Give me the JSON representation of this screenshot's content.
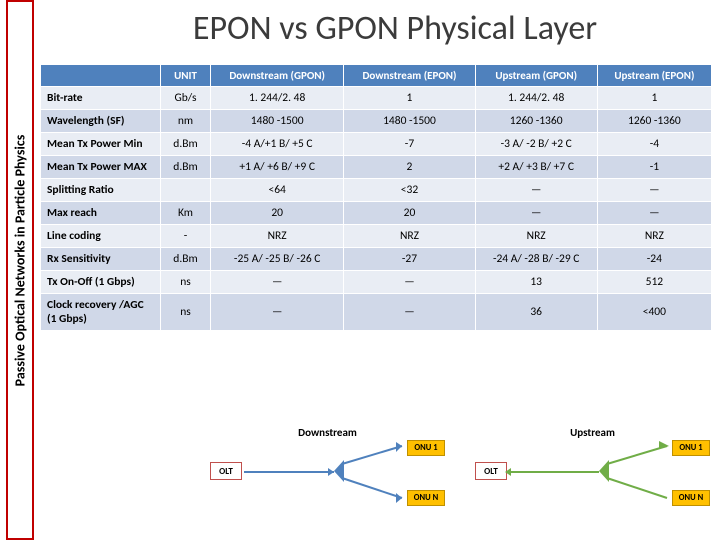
{
  "title": "EPON vs GPON Physical Layer",
  "sidebar": "Passive Optical Networks in Particle Physics",
  "headers": {
    "unit": "UNIT",
    "ds_gpon": "Downstream (GPON)",
    "ds_epon": "Downstream (EPON)",
    "us_gpon": "Upstream (GPON)",
    "us_epon": "Upstream (EPON)"
  },
  "rows": [
    {
      "label": "Bit-rate",
      "unit": "Gb/s",
      "dsg": "1. 244/2. 48",
      "dse": "1",
      "usg": "1. 244/2. 48",
      "use": "1"
    },
    {
      "label": "Wavelength (SF)",
      "unit": "nm",
      "dsg": "1480 -1500",
      "dse": "1480 -1500",
      "usg": "1260 -1360",
      "use": "1260 -1360"
    },
    {
      "label": "Mean Tx Power Min",
      "unit": "d.Bm",
      "dsg": "-4  A/+1 B/ +5 C",
      "dse": "-7",
      "usg": "-3 A/ -2 B/ +2 C",
      "use": "-4"
    },
    {
      "label": "Mean Tx Power MAX",
      "unit": "d.Bm",
      "dsg": "+1 A/ +6 B/ +9 C",
      "dse": "2",
      "usg": "+2 A/ +3 B/ +7 C",
      "use": "-1"
    },
    {
      "label": "Splitting Ratio",
      "unit": "",
      "dsg": "<64",
      "dse": "<32",
      "usg": "—",
      "use": "—"
    },
    {
      "label": "Max reach",
      "unit": "Km",
      "dsg": "20",
      "dse": "20",
      "usg": "—",
      "use": "—"
    },
    {
      "label": "Line coding",
      "unit": "-",
      "dsg": "NRZ",
      "dse": "NRZ",
      "usg": "NRZ",
      "use": "NRZ"
    },
    {
      "label": "Rx Sensitivity",
      "unit": "d.Bm",
      "dsg": "-25 A/ -25 B/ -26 C",
      "dse": "-27",
      "usg": "-24 A/ -28 B/ -29 C",
      "use": "-24"
    },
    {
      "label": "Tx On-Off  (1 Gbps)",
      "unit": "ns",
      "dsg": "—",
      "dse": "—",
      "usg": "13",
      "use": "512"
    },
    {
      "label": "Clock recovery /AGC (1 Gbps)",
      "unit": "ns",
      "dsg": "—",
      "dse": "—",
      "usg": "36",
      "use": "<400"
    }
  ],
  "diagram": {
    "downstream": "Downstream",
    "upstream": "Upstream",
    "olt": "OLT",
    "onu1": "ONU 1",
    "onun": "ONU N"
  },
  "colors": {
    "header_bg": "#4f81bd",
    "row_even": "#e9edf4",
    "row_odd": "#d0d8e8",
    "sidebar_border": "#c00000",
    "downstream_line": "#4f81bd",
    "upstream_line": "#70ad47",
    "onu_fill": "#ffc000",
    "olt_border": "#c0504d"
  }
}
